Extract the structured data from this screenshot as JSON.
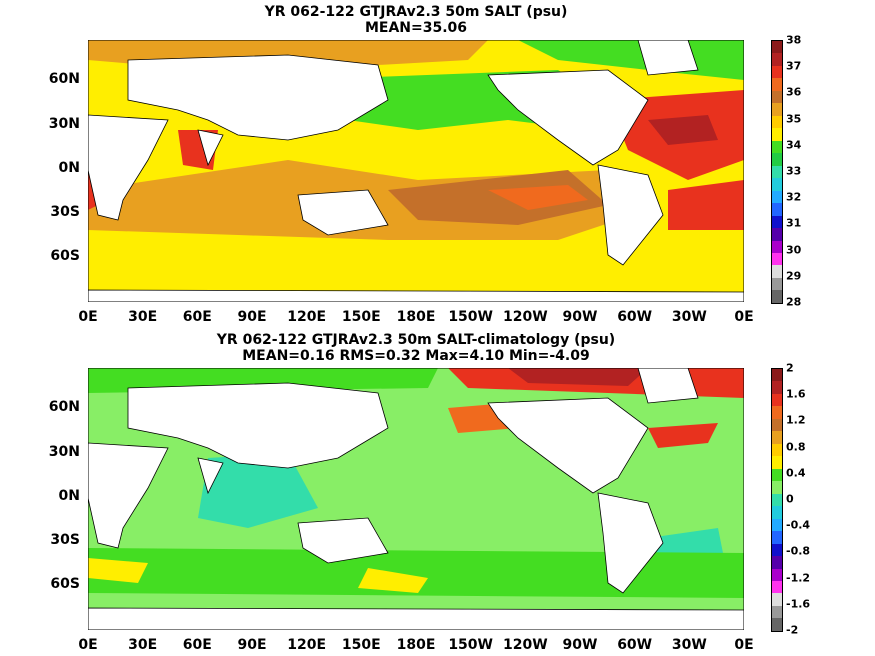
{
  "top": {
    "title_line1": "YR 062-122 GTJRAv2.3 50m SALT (psu)",
    "title_line2": "MEAN=35.06",
    "colorbar_labels": [
      "38",
      "37",
      "36",
      "35",
      "34",
      "33",
      "32",
      "31",
      "30",
      "29",
      "28"
    ],
    "colorbar_colors": [
      "#8b1a1a",
      "#b22222",
      "#e8321e",
      "#f06a1e",
      "#c4702a",
      "#e8a020",
      "#ffcc00",
      "#ffee00",
      "#44dd22",
      "#22cc44",
      "#33ddaa",
      "#22ccdd",
      "#22aaff",
      "#2266ff",
      "#1111cc",
      "#5500aa",
      "#aa00cc",
      "#ff33ee",
      "#dddddd",
      "#999999",
      "#666666"
    ]
  },
  "bottom": {
    "title_line1": "YR 062-122 GTJRAv2.3 50m SALT-climatology (psu)",
    "title_line2": "MEAN=0.16   RMS=0.32   Max=4.10   Min=-4.09",
    "colorbar_labels": [
      "2",
      "1.6",
      "1.2",
      "0.8",
      "0.4",
      "0",
      "-0.4",
      "-0.8",
      "-1.2",
      "-1.6",
      "-2"
    ],
    "colorbar_colors": [
      "#8b1a1a",
      "#b22222",
      "#e8321e",
      "#f06a1e",
      "#c4702a",
      "#e8a020",
      "#ffcc00",
      "#ffee00",
      "#44dd22",
      "#88ee66",
      "#33ddaa",
      "#22ccdd",
      "#22aaff",
      "#2266ff",
      "#1111cc",
      "#5500aa",
      "#aa00cc",
      "#ff33ee",
      "#dddddd",
      "#999999",
      "#666666"
    ]
  },
  "x_ticks": [
    "0E",
    "30E",
    "60E",
    "90E",
    "120E",
    "150E",
    "180E",
    "150W",
    "120W",
    "90W",
    "60W",
    "30W",
    "0E"
  ],
  "y_ticks": [
    "60N",
    "30N",
    "0N",
    "30S",
    "60S"
  ]
}
